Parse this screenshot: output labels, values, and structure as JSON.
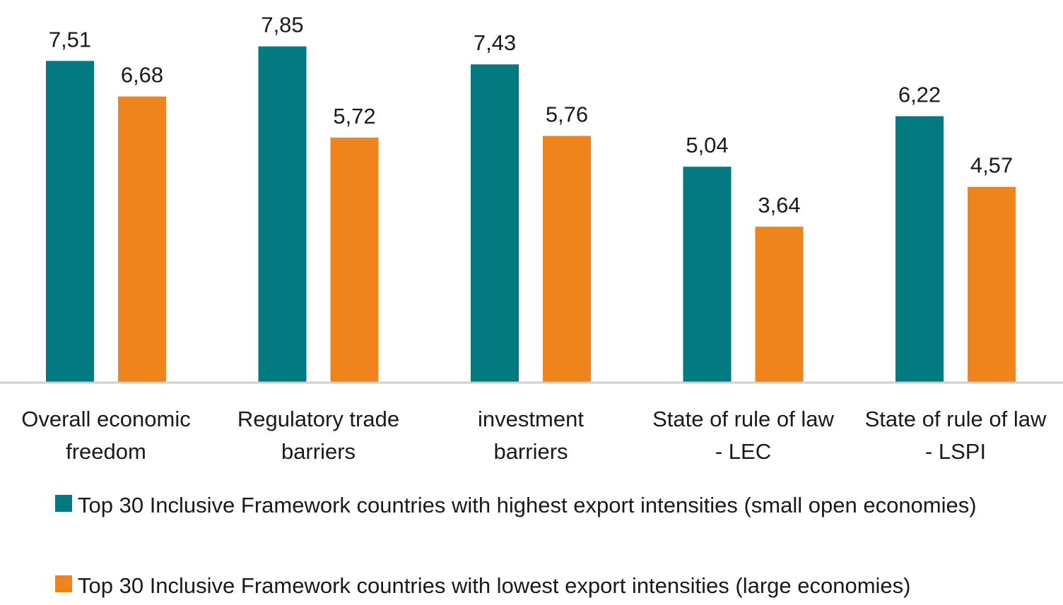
{
  "colors": {
    "series1": "#037a7f",
    "series2": "#ef841d",
    "axis": "#cfcfcf",
    "text": "#1a1a1a"
  },
  "chart_data": {
    "type": "bar",
    "categories": [
      [
        "Overall economic",
        "freedom"
      ],
      [
        "Regulatory trade",
        "barriers"
      ],
      [
        "investment",
        "barriers"
      ],
      [
        "State of rule of law",
        "- LEC"
      ],
      [
        "State of rule of law",
        "- LSPI"
      ]
    ],
    "series": [
      {
        "name": "Top 30 Inclusive Framework countries with highest export intensities (small open economies)",
        "values": [
          7.51,
          7.85,
          7.43,
          5.04,
          6.22
        ],
        "labels": [
          "7,51",
          "7,85",
          "7,43",
          "5,04",
          "6,22"
        ],
        "color": "#037a7f"
      },
      {
        "name": "Top 30 Inclusive Framework countries with lowest export intensities (large economies)",
        "values": [
          6.68,
          5.72,
          5.76,
          3.64,
          4.57
        ],
        "labels": [
          "6,68",
          "5,72",
          "5,76",
          "3,64",
          "4,57"
        ],
        "color": "#ef841d"
      }
    ],
    "legend_position": "bottom",
    "grid": false,
    "ylim": [
      0,
      8.9
    ]
  },
  "legend": {
    "items": [
      {
        "text": "Top 30 Inclusive Framework countries with highest export intensities (small open economies)"
      },
      {
        "text": "Top 30 Inclusive Framework countries with lowest export intensities (large economies)"
      }
    ]
  }
}
